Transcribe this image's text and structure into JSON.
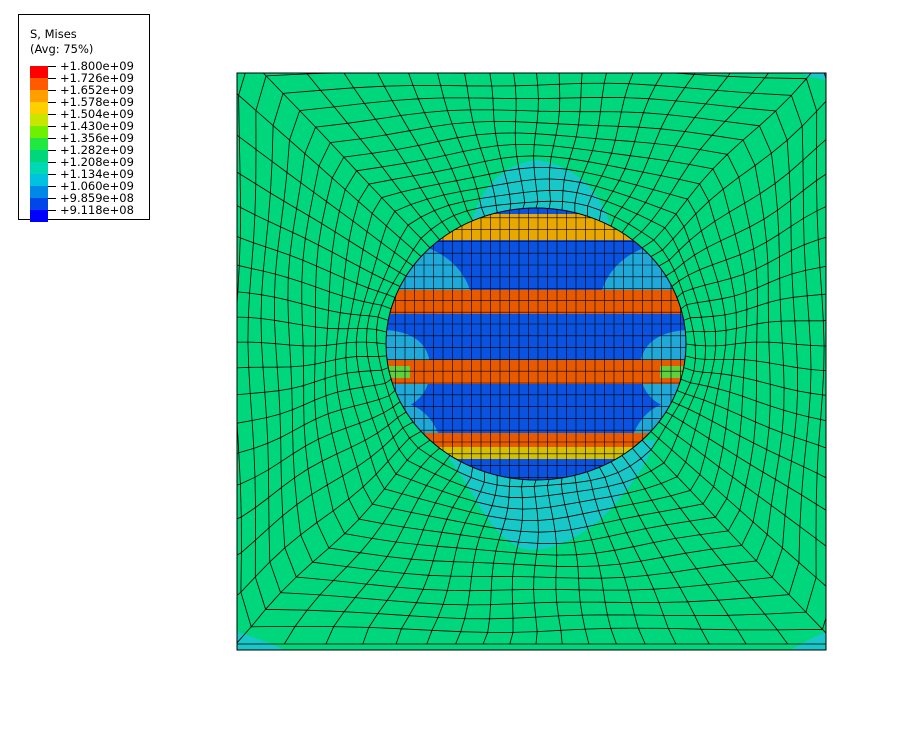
{
  "legend": {
    "title": "S, Mises",
    "subtitle": "(Avg: 75%)",
    "levels": [
      {
        "label": "+1.800e+09",
        "color": "#ff0000"
      },
      {
        "label": "+1.726e+09",
        "color": "#ff5a00"
      },
      {
        "label": "+1.652e+09",
        "color": "#ffa000"
      },
      {
        "label": "+1.578e+09",
        "color": "#ffd000"
      },
      {
        "label": "+1.504e+09",
        "color": "#c8e600"
      },
      {
        "label": "+1.430e+09",
        "color": "#6ef000"
      },
      {
        "label": "+1.356e+09",
        "color": "#20e840"
      },
      {
        "label": "+1.282e+09",
        "color": "#00d67c"
      },
      {
        "label": "+1.208e+09",
        "color": "#00d8b4"
      },
      {
        "label": "+1.134e+09",
        "color": "#00c2de"
      },
      {
        "label": "+1.060e+09",
        "color": "#0088e6"
      },
      {
        "label": "+9.859e+08",
        "color": "#0046e8"
      },
      {
        "label": "+9.118e+08",
        "color": "#0000ff"
      }
    ]
  },
  "contour": {
    "background_color": "#00d67c",
    "mesh_line_color": "#000000",
    "inclusion_base_color": "#0a52e0",
    "halo_color": "#18c8c8",
    "band_colors": {
      "top_cap": "#e8a800",
      "upper": "#e85a00",
      "middle": "#e85a00",
      "lower": "#e85a00",
      "lower_edge": "#d4c000",
      "side_light": "#20a8d8",
      "side_green": "#60d040"
    }
  }
}
